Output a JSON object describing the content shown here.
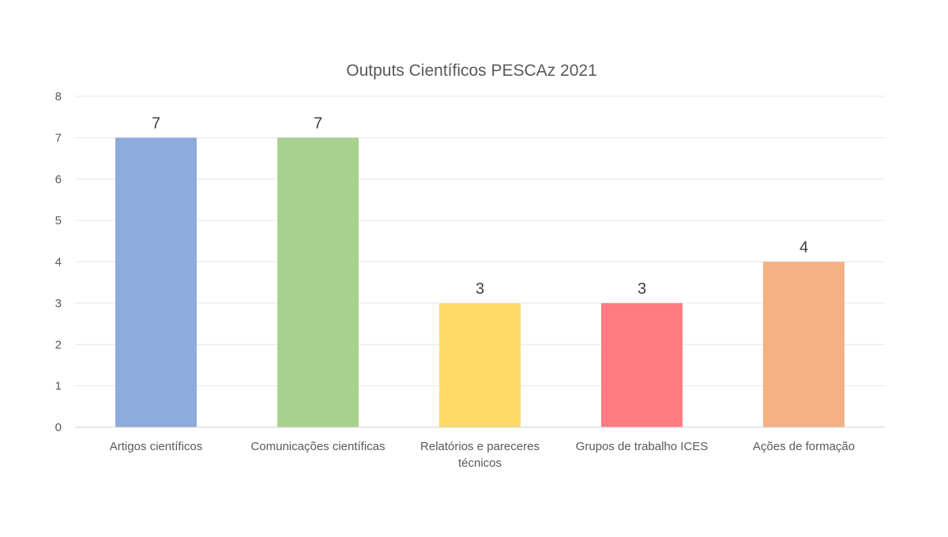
{
  "chart_data": {
    "type": "bar",
    "title": "Outputs Científicos PESCAz 2021",
    "xlabel": "",
    "ylabel": "",
    "ylim": [
      0,
      8
    ],
    "y_ticks": [
      "0",
      "1",
      "2",
      "3",
      "4",
      "5",
      "6",
      "7",
      "8"
    ],
    "grid": true,
    "legend": "none",
    "categories": [
      "Artigos científicos",
      "Comunicações científicas",
      "Relatórios e pareceres técnicos",
      "Grupos de trabalho ICES",
      "Ações de formação"
    ],
    "category_lines": [
      [
        "Artigos científicos"
      ],
      [
        "Comunicações científicas"
      ],
      [
        "Relatórios e pareceres",
        "técnicos"
      ],
      [
        "Grupos de trabalho ICES"
      ],
      [
        "Ações de formação"
      ]
    ],
    "values": [
      7,
      7,
      3,
      3,
      4
    ],
    "data_labels": [
      "7",
      "7",
      "3",
      "3",
      "4"
    ],
    "colors": [
      "#8faadc",
      "#a9d18e",
      "#ffd966",
      "#ff7c80",
      "#f4b183"
    ]
  }
}
